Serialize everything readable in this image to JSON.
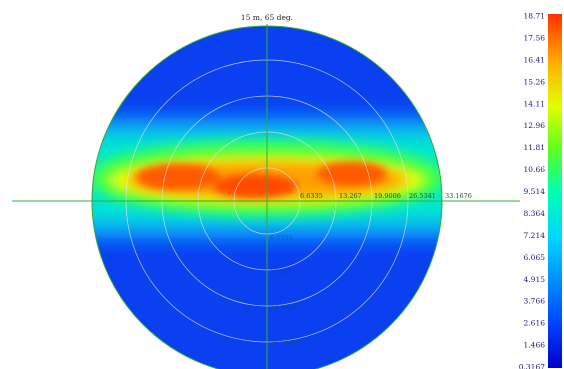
{
  "chart_data": {
    "type": "heatmap",
    "projection": "polar",
    "title": "15 m, 65 deg.",
    "colorscale": [
      "#0000c8",
      "#0050ff",
      "#00b4ff",
      "#00e0c0",
      "#40ff40",
      "#c8ff00",
      "#ffd000",
      "#ff7000",
      "#e83000"
    ],
    "colorbar": {
      "min": 0.3167,
      "max": 18.71,
      "ticks": [
        "18.71",
        "17.56",
        "16.41",
        "15.26",
        "14.11",
        "12.96",
        "11.81",
        "10.66",
        "9.514",
        "8.364",
        "7.214",
        "6.065",
        "4.915",
        "3.766",
        "2.616",
        "1.466",
        "0.3167"
      ]
    },
    "rings": [
      "6.6335",
      "13.267",
      "19.9006",
      "26.5341",
      "33.1676"
    ],
    "hot_band": {
      "orientation": "horizontal",
      "peak_value": 18.71,
      "peak_locations": [
        "left lobe",
        "center",
        "right lobe"
      ]
    },
    "grid": true
  }
}
